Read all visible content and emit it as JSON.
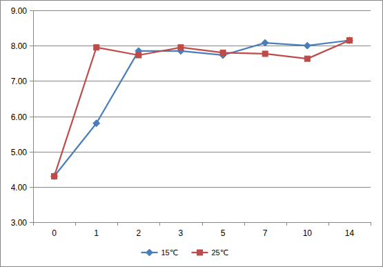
{
  "chart_data": {
    "type": "line",
    "categories": [
      "0",
      "1",
      "2",
      "3",
      "5",
      "7",
      "10",
      "14"
    ],
    "series": [
      {
        "name": "15℃",
        "color": "#4a7ebb",
        "marker": "diamond",
        "values": [
          4.3,
          5.8,
          7.85,
          7.85,
          7.73,
          8.08,
          8.0,
          8.15
        ]
      },
      {
        "name": "25℃",
        "color": "#be4b48",
        "marker": "square",
        "values": [
          4.3,
          7.95,
          7.73,
          7.95,
          7.8,
          7.77,
          7.63,
          8.15
        ]
      }
    ],
    "ylim": [
      3,
      9
    ],
    "yticks": [
      {
        "value": 3,
        "label": "3.00"
      },
      {
        "value": 4,
        "label": "4.00"
      },
      {
        "value": 5,
        "label": "5.00"
      },
      {
        "value": 6,
        "label": "6.00"
      },
      {
        "value": 7,
        "label": "7.00"
      },
      {
        "value": 8,
        "label": "8.00"
      },
      {
        "value": 9,
        "label": "9.00"
      }
    ],
    "grid": true,
    "legend": "bottom"
  }
}
